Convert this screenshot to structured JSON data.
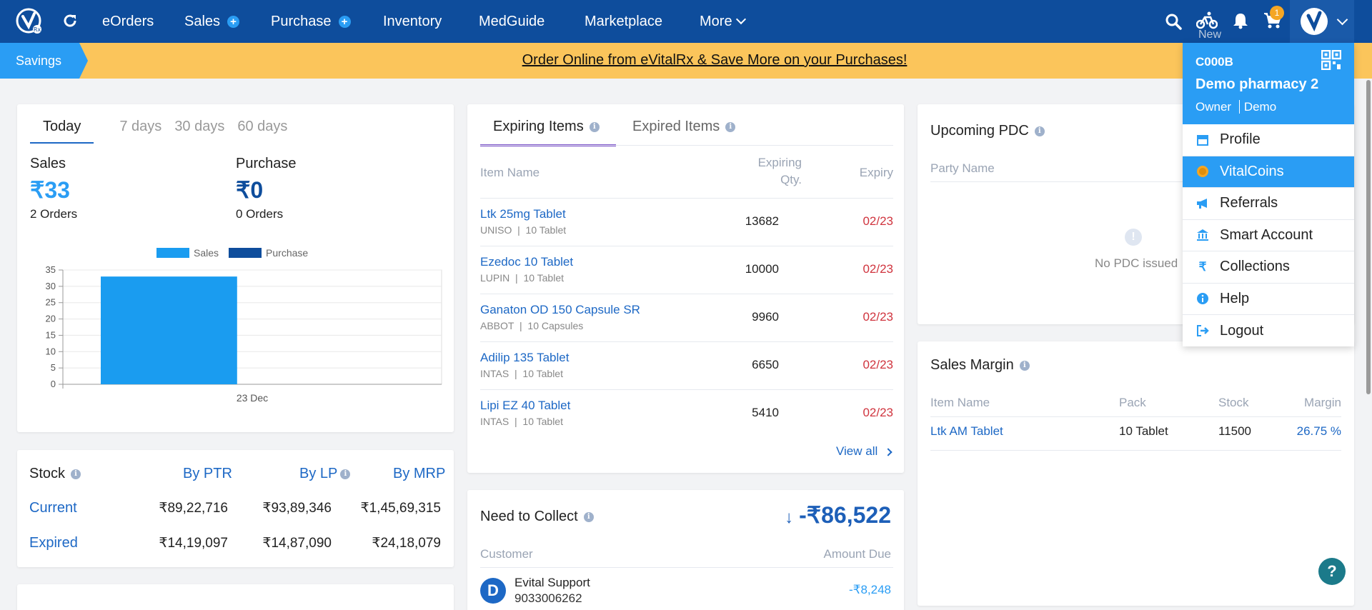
{
  "nav": {
    "items": [
      "eOrders",
      "Sales",
      "Purchase",
      "Inventory",
      "MedGuide",
      "Marketplace",
      "More"
    ],
    "plus": "+",
    "new_label": "New",
    "cart_count": "1"
  },
  "banner": {
    "tag": "Savings",
    "link": "Order Online from eVitalRx & Save More on your Purchases!"
  },
  "summary": {
    "tabs": [
      "Today",
      "7 days",
      "30 days",
      "60 days"
    ],
    "sales_label": "Sales",
    "sales_value": "₹33",
    "sales_orders": "2 Orders",
    "purchase_label": "Purchase",
    "purchase_value": "₹0",
    "purchase_orders": "0 Orders"
  },
  "chart_data": {
    "type": "bar",
    "categories": [
      "23 Dec"
    ],
    "series": [
      {
        "name": "Sales",
        "values": [
          33
        ],
        "color": "#1a9cf0"
      },
      {
        "name": "Purchase",
        "values": [
          0
        ],
        "color": "#0e4d9c"
      }
    ],
    "yticks": [
      0,
      5,
      10,
      15,
      20,
      25,
      30,
      35
    ],
    "ylim": [
      0,
      35
    ],
    "legend": "top"
  },
  "stock": {
    "title": "Stock",
    "headers": [
      "By PTR",
      "By LP",
      "By MRP"
    ],
    "rows": [
      {
        "label": "Current",
        "values": [
          "₹89,22,716",
          "₹93,89,346",
          "₹1,45,69,315"
        ]
      },
      {
        "label": "Expired",
        "values": [
          "₹14,19,097",
          "₹14,87,090",
          "₹24,18,079"
        ]
      }
    ]
  },
  "expiring": {
    "tabs": [
      "Expiring Items",
      "Expired Items"
    ],
    "headers": {
      "name": "Item Name",
      "qty1": "Expiring",
      "qty2": "Qty.",
      "expiry": "Expiry"
    },
    "rows": [
      {
        "name": "Ltk 25mg Tablet",
        "company": "UNISO",
        "pack": "10 Tablet",
        "qty": "13682",
        "expiry": "02/23"
      },
      {
        "name": "Ezedoc 10 Tablet",
        "company": "LUPIN",
        "pack": "10 Tablet",
        "qty": "10000",
        "expiry": "02/23"
      },
      {
        "name": "Ganaton OD 150 Capsule SR",
        "company": "ABBOT",
        "pack": "10 Capsules",
        "qty": "9960",
        "expiry": "02/23"
      },
      {
        "name": "Adilip 135 Tablet",
        "company": "INTAS",
        "pack": "10 Tablet",
        "qty": "6650",
        "expiry": "02/23"
      },
      {
        "name": "Lipi EZ 40 Tablet",
        "company": "INTAS",
        "pack": "10 Tablet",
        "qty": "5410",
        "expiry": "02/23"
      }
    ],
    "view_all": "View all"
  },
  "collect": {
    "title": "Need to Collect",
    "amount": "-₹86,522",
    "head_customer": "Customer",
    "head_amount": "Amount Due",
    "customer_initial": "D",
    "customer_name": "Evital Support",
    "customer_phone": "9033006262",
    "customer_due": "-₹8,248"
  },
  "pdc": {
    "title": "Upcoming PDC",
    "head_party": "Party Name",
    "empty": "No PDC issued"
  },
  "margin": {
    "title": "Sales Margin",
    "headers": [
      "Item Name",
      "Pack",
      "Stock",
      "Margin"
    ],
    "row": {
      "name": "Ltk AM Tablet",
      "pack": "10 Tablet",
      "stock": "11500",
      "margin": "26.75 %"
    }
  },
  "dropdown": {
    "code": "C000B",
    "name": "Demo pharmacy 2",
    "role": "Owner",
    "user": "Demo",
    "items": [
      "Profile",
      "VitalCoins",
      "Referrals",
      "Smart Account",
      "Collections",
      "Help",
      "Logout"
    ]
  },
  "help_fab": "?"
}
